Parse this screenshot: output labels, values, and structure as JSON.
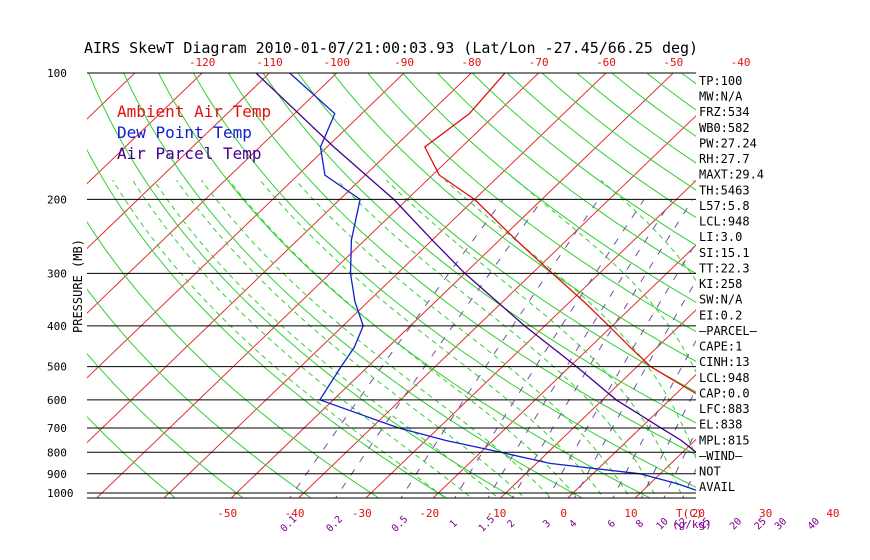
{
  "chart_data": {
    "type": "line",
    "title": "AIRS SkewT Diagram 2010-01-07/21:00:03.93 (Lat/Lon -27.45/66.25 deg)",
    "ylabel": "PRESSURE (MB)",
    "xlabel_temp": "T(C)",
    "xlabel_mix": "(g/kg)",
    "pressure_axis": {
      "scale": "log",
      "range": [
        1000,
        100
      ],
      "ticks": [
        "100",
        "200",
        "300",
        "400",
        "500",
        "600",
        "700",
        "800",
        "900",
        "1000"
      ],
      "tick_values": [
        100,
        200,
        300,
        400,
        500,
        600,
        700,
        800,
        900,
        1000
      ]
    },
    "bottom_temp_ticks": [
      "-50",
      "-40",
      "-30",
      "-20",
      "-10",
      "0",
      "10",
      "20",
      "30",
      "40"
    ],
    "bottom_temp_values": [
      -50,
      -40,
      -30,
      -20,
      -10,
      0,
      10,
      20,
      30,
      40
    ],
    "top_temp_ticks": [
      "-120",
      "-110",
      "-100",
      "-90",
      "-80",
      "-70",
      "-60",
      "-50",
      "-40"
    ],
    "top_temp_values": [
      -120,
      -110,
      -100,
      -90,
      -80,
      -70,
      -60,
      -50,
      -40
    ],
    "mixing_ratio_ticks": [
      "0.1",
      "0.2",
      "0.5",
      "1",
      "1.5",
      "2",
      "3",
      "4",
      "6",
      "8",
      "10",
      "12",
      "15",
      "20",
      "25",
      "30",
      "40"
    ],
    "mixing_ratio_values": [
      0.1,
      0.2,
      0.5,
      1,
      1.5,
      2,
      3,
      4,
      6,
      8,
      10,
      12,
      15,
      20,
      25,
      30,
      40
    ],
    "legend": [
      {
        "label": "Ambient Air Temp",
        "color": "#e01010"
      },
      {
        "label": "Dew Point Temp",
        "color": "#1020d0"
      },
      {
        "label": "Air Parcel Temp",
        "color": "#400090"
      }
    ],
    "legend_position": "top-left",
    "series": [
      {
        "name": "Ambient Air Temp",
        "color": "#e01010",
        "points": [
          [
            1000,
            26.7
          ],
          [
            950,
            21
          ],
          [
            900,
            21.5
          ],
          [
            850,
            22.5
          ],
          [
            800,
            24.5
          ],
          [
            750,
            24.5
          ],
          [
            700,
            20.5
          ],
          [
            650,
            12.5
          ],
          [
            600,
            5.5
          ],
          [
            550,
            -1
          ],
          [
            500,
            -8
          ],
          [
            450,
            -14
          ],
          [
            400,
            -20.5
          ],
          [
            350,
            -28
          ],
          [
            300,
            -37
          ],
          [
            250,
            -47.5
          ],
          [
            200,
            -60
          ],
          [
            175,
            -69
          ],
          [
            150,
            -75.5
          ],
          [
            125,
            -74
          ],
          [
            100,
            -75
          ]
        ]
      },
      {
        "name": "Dew Point Temp",
        "color": "#1020d0",
        "points": [
          [
            1000,
            19.5
          ],
          [
            950,
            14
          ],
          [
            900,
            7
          ],
          [
            850,
            -8
          ],
          [
            800,
            -17
          ],
          [
            750,
            -27
          ],
          [
            700,
            -36
          ],
          [
            600,
            -52
          ],
          [
            500,
            -54
          ],
          [
            450,
            -55
          ],
          [
            400,
            -57
          ],
          [
            350,
            -62
          ],
          [
            300,
            -67
          ],
          [
            250,
            -72
          ],
          [
            200,
            -77
          ],
          [
            175,
            -86
          ],
          [
            150,
            -91
          ],
          [
            125,
            -94
          ],
          [
            100,
            -107
          ]
        ]
      },
      {
        "name": "Air Parcel Temp",
        "color": "#400090",
        "points": [
          [
            1000,
            26.7
          ],
          [
            950,
            21
          ],
          [
            900,
            20
          ],
          [
            850,
            16
          ],
          [
            800,
            12
          ],
          [
            750,
            8
          ],
          [
            700,
            3
          ],
          [
            600,
            -8
          ],
          [
            500,
            -19
          ],
          [
            400,
            -33
          ],
          [
            300,
            -50
          ],
          [
            250,
            -60
          ],
          [
            200,
            -72
          ],
          [
            150,
            -89
          ],
          [
            100,
            -112
          ]
        ]
      }
    ],
    "grid": true,
    "side_panel": [
      "TP:100",
      "MW:N/A",
      "FRZ:534",
      "WB0:582",
      "PW:27.24",
      "RH:27.7",
      "MAXT:29.4",
      "TH:5463",
      "L57:5.8",
      "LCL:948",
      "LI:3.0",
      "SI:15.1",
      "TT:22.3",
      "KI:258",
      "SW:N/A",
      "EI:0.2",
      "—PARCEL—",
      "CAPE:1",
      "CINH:13",
      "LCL:948",
      "CAP:0.0",
      "LFC:883",
      "EL:838",
      "MPL:815",
      "—WIND—",
      "NOT",
      "AVAIL"
    ],
    "colors": {
      "isotherm": "#e03030",
      "dry_adiabat": "#30d030",
      "moist_adiabat": "#30d030",
      "mixing_ratio": "#7050a0",
      "isobar": "#000000",
      "temp_label": "#e01010",
      "mix_label": "#800090"
    }
  }
}
